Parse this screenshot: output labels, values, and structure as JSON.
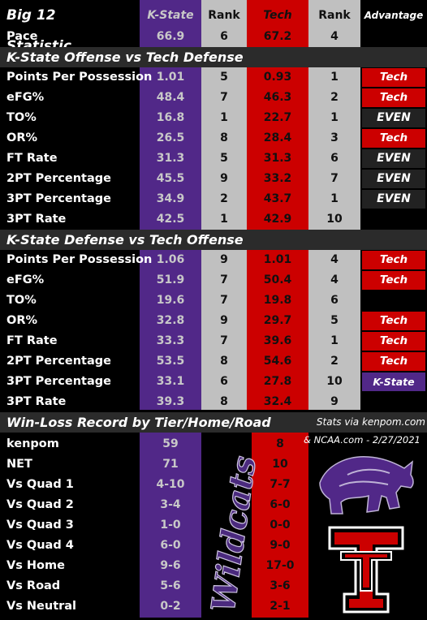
{
  "header": {
    "title": "Big 12 Statistic...",
    "col_ks": "K-State",
    "col_rank1": "Rank",
    "col_tech": "Tech",
    "col_rank2": "Rank",
    "col_adv": "Advantage"
  },
  "pace": {
    "label": "Pace",
    "ks": "66.9",
    "rk1": "6",
    "tech": "67.2",
    "rk2": "4"
  },
  "sections": {
    "offense": "K-State Offense vs Tech Defense",
    "defense": "K-State Defense vs Tech Offense",
    "record": "Win-Loss Record by Tier/Home/Road"
  },
  "offense_rows": [
    {
      "label": "Points Per Possession",
      "ks": "1.01",
      "rk1": "5",
      "tech": "0.93",
      "rk2": "1",
      "adv": "Tech"
    },
    {
      "label": "eFG%",
      "ks": "48.4",
      "rk1": "7",
      "tech": "46.3",
      "rk2": "2",
      "adv": "Tech"
    },
    {
      "label": "TO%",
      "ks": "16.8",
      "rk1": "1",
      "tech": "22.7",
      "rk2": "1",
      "adv": "EVEN"
    },
    {
      "label": "OR%",
      "ks": "26.5",
      "rk1": "8",
      "tech": "28.4",
      "rk2": "3",
      "adv": "Tech"
    },
    {
      "label": "FT Rate",
      "ks": "31.3",
      "rk1": "5",
      "tech": "31.3",
      "rk2": "6",
      "adv": "EVEN"
    },
    {
      "label": "2PT Percentage",
      "ks": "45.5",
      "rk1": "9",
      "tech": "33.2",
      "rk2": "7",
      "adv": "EVEN"
    },
    {
      "label": "3PT Percentage",
      "ks": "34.9",
      "rk1": "2",
      "tech": "43.7",
      "rk2": "1",
      "adv": "EVEN"
    },
    {
      "label": "3PT Rate",
      "ks": "42.5",
      "rk1": "1",
      "tech": "42.9",
      "rk2": "10",
      "adv": ""
    }
  ],
  "defense_rows": [
    {
      "label": "Points Per Possession",
      "ks": "1.06",
      "rk1": "9",
      "tech": "1.01",
      "rk2": "4",
      "adv": "Tech"
    },
    {
      "label": "eFG%",
      "ks": "51.9",
      "rk1": "7",
      "tech": "50.4",
      "rk2": "4",
      "adv": "Tech"
    },
    {
      "label": "TO%",
      "ks": "19.6",
      "rk1": "7",
      "tech": "19.8",
      "rk2": "6",
      "adv": ""
    },
    {
      "label": "OR%",
      "ks": "32.8",
      "rk1": "9",
      "tech": "29.7",
      "rk2": "5",
      "adv": "Tech"
    },
    {
      "label": "FT Rate",
      "ks": "33.3",
      "rk1": "7",
      "tech": "39.6",
      "rk2": "1",
      "adv": "Tech"
    },
    {
      "label": "2PT Percentage",
      "ks": "53.5",
      "rk1": "8",
      "tech": "54.6",
      "rk2": "2",
      "adv": "Tech"
    },
    {
      "label": "3PT Percentage",
      "ks": "33.1",
      "rk1": "6",
      "tech": "27.8",
      "rk2": "10",
      "adv": "K-State"
    },
    {
      "label": "3PT Rate",
      "ks": "39.3",
      "rk1": "8",
      "tech": "32.4",
      "rk2": "9",
      "adv": ""
    }
  ],
  "record_rows": [
    {
      "label": "kenpom",
      "ks": "59",
      "tech": "8"
    },
    {
      "label": "NET",
      "ks": "71",
      "tech": "10"
    },
    {
      "label": "Vs Quad 1",
      "ks": "4-10",
      "tech": "7-7"
    },
    {
      "label": "Vs Quad 2",
      "ks": "3-4",
      "tech": "6-0"
    },
    {
      "label": "Vs Quad 3",
      "ks": "1-0",
      "tech": "0-0"
    },
    {
      "label": "Vs Quad 4",
      "ks": "6-0",
      "tech": "9-0"
    },
    {
      "label": "Vs Home",
      "ks": "9-6",
      "tech": "17-0"
    },
    {
      "label": "Vs Road",
      "ks": "5-6",
      "tech": "3-6"
    },
    {
      "label": "Vs Neutral",
      "ks": "0-2",
      "tech": "2-1"
    }
  ],
  "credits": {
    "line1": "Stats via kenpom.com",
    "line2": "& NCAA.com - 2/27/2021"
  },
  "logos": {
    "script_wordmark": "Wildcats",
    "ks_logo_icon": "powercat-icon",
    "tech_logo_icon": "double-t-icon"
  },
  "colors": {
    "ks_purple": "#512888",
    "tech_red": "#cc0000",
    "rank_gray": "#c0c0c0",
    "even_bg": "#222222"
  }
}
